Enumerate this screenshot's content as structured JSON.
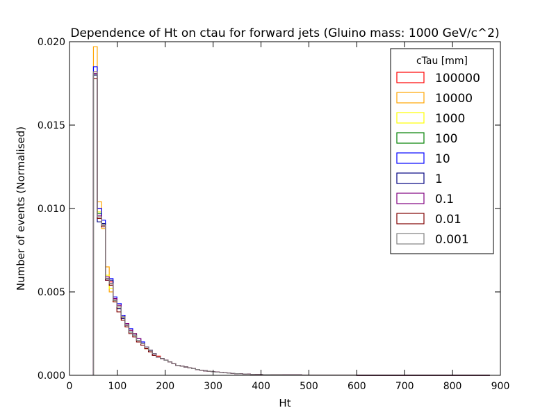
{
  "chart_data": {
    "type": "step-histogram",
    "title": "Dependence of Ht on ctau for forward jets (Gluino mass: 1000 GeV/c^2)",
    "xlabel": "Ht",
    "ylabel": "Number of events (Normalised)",
    "xlim": [
      0,
      900
    ],
    "ylim": [
      0,
      0.02
    ],
    "x_ticks": [
      "0",
      "100",
      "200",
      "300",
      "400",
      "500",
      "600",
      "700",
      "800",
      "900"
    ],
    "y_ticks": [
      "0.000",
      "0.005",
      "0.010",
      "0.015",
      "0.020"
    ],
    "grid": false,
    "legend": {
      "title": "cTau [mm]",
      "placement": "top-right"
    },
    "bin_edges": [
      50,
      58,
      67,
      75,
      83,
      91,
      99,
      108,
      116,
      124,
      132,
      140,
      149,
      157,
      165,
      173,
      181,
      190,
      198,
      206,
      214,
      222,
      231,
      239,
      247,
      255,
      263,
      272,
      280,
      288,
      296,
      304,
      313,
      321,
      329,
      337,
      345,
      354,
      362,
      370,
      378,
      386,
      395,
      403,
      411,
      419,
      427,
      436,
      444,
      452,
      460,
      468,
      477,
      485,
      493,
      501,
      509,
      518,
      526,
      534,
      542,
      550,
      559,
      567,
      575,
      583,
      591,
      600,
      608,
      616,
      624,
      632,
      641,
      649,
      657,
      665,
      673,
      682,
      690,
      698,
      706,
      714,
      723,
      731,
      739,
      747,
      755,
      764,
      772,
      780,
      788,
      796,
      805,
      813,
      821,
      829,
      837,
      846,
      854,
      862,
      870,
      878
    ],
    "series": [
      {
        "name": "100000",
        "color": "#ff0000",
        "values": [
          0.0182,
          0.01,
          0.009,
          0.0058,
          0.0056,
          0.0046,
          0.004,
          0.0036,
          0.003,
          0.0027,
          0.0024,
          0.0022,
          0.0019,
          0.0017,
          0.0015,
          0.0013,
          0.00115,
          0.001,
          0.0009,
          0.0008,
          0.0007,
          0.0006,
          0.00055,
          0.0005,
          0.00045,
          0.0004,
          0.00035,
          0.0003,
          0.00027,
          0.00024,
          0.00021,
          0.00019,
          0.00017,
          0.00015,
          0.00013,
          0.00012,
          0.0001,
          9e-05,
          8e-05,
          7e-05,
          6e-05,
          5e-05,
          5e-05,
          4e-05,
          4e-05,
          3e-05,
          3e-05,
          3e-05,
          2e-05,
          2e-05,
          2e-05,
          2e-05,
          2e-05,
          1e-05,
          1e-05,
          1e-05,
          1e-05,
          1e-05,
          1e-05,
          1e-05,
          1e-05,
          1e-05,
          1e-05,
          1e-05,
          1e-05,
          1e-05,
          1e-05,
          0,
          0,
          0,
          0,
          0,
          0,
          0,
          0,
          0,
          0,
          0,
          0,
          0,
          0,
          0,
          0,
          0,
          0,
          0,
          0,
          0,
          0,
          0,
          0,
          0,
          0,
          0,
          0,
          0,
          0,
          0,
          0,
          0,
          0
        ]
      },
      {
        "name": "10000",
        "color": "#ffa500",
        "values": [
          0.0197,
          0.0104,
          0.0088,
          0.0065,
          0.005,
          0.0045,
          0.0042,
          0.0034,
          0.003,
          0.0026,
          0.0025,
          0.0021,
          0.0019,
          0.0017,
          0.0014,
          0.0012,
          0.0011,
          0.001,
          0.0009,
          0.0008,
          0.0007,
          0.0006,
          0.00055,
          0.0005,
          0.00045,
          0.0004,
          0.00035,
          0.0003,
          0.00027,
          0.00024,
          0.00021,
          0.00019,
          0.00017,
          0.00015,
          0.00013,
          0.00012,
          0.0001,
          9e-05,
          8e-05,
          7e-05,
          6e-05,
          5e-05,
          5e-05,
          4e-05,
          4e-05,
          3e-05,
          3e-05,
          3e-05,
          2e-05,
          2e-05,
          2e-05,
          2e-05,
          2e-05,
          1e-05,
          1e-05,
          1e-05,
          1e-05,
          1e-05,
          1e-05,
          1e-05,
          1e-05,
          1e-05,
          1e-05,
          1e-05,
          1e-05,
          1e-05,
          1e-05,
          0,
          0,
          0,
          0,
          0,
          0,
          0,
          0,
          0,
          0,
          0,
          0,
          0,
          0,
          0,
          0,
          0,
          0,
          0,
          0,
          0,
          0,
          0,
          0,
          0,
          0,
          0,
          0,
          0,
          0,
          0,
          0,
          0,
          0
        ]
      },
      {
        "name": "1000",
        "color": "#ffff00",
        "values": [
          0.018,
          0.0098,
          0.0091,
          0.006,
          0.0052,
          0.0044,
          0.0041,
          0.0035,
          0.0031,
          0.0027,
          0.0024,
          0.0022,
          0.0019,
          0.0016,
          0.0014,
          0.0013,
          0.0011,
          0.001,
          0.0009,
          0.0008,
          0.0007,
          0.0006,
          0.00055,
          0.0005,
          0.00045,
          0.0004,
          0.00035,
          0.0003,
          0.00027,
          0.00024,
          0.00021,
          0.00019,
          0.00017,
          0.00015,
          0.00013,
          0.00012,
          0.0001,
          9e-05,
          8e-05,
          7e-05,
          6e-05,
          5e-05,
          5e-05,
          4e-05,
          4e-05,
          3e-05,
          3e-05,
          3e-05,
          2e-05,
          2e-05,
          2e-05,
          2e-05,
          2e-05,
          1e-05,
          1e-05,
          1e-05,
          1e-05,
          1e-05,
          1e-05,
          1e-05,
          1e-05,
          1e-05,
          1e-05,
          1e-05,
          1e-05,
          1e-05,
          1e-05,
          0,
          0,
          0,
          0,
          0,
          0,
          0,
          0,
          0,
          0,
          0,
          0,
          0,
          0,
          0,
          0,
          0,
          0,
          0,
          0,
          0,
          0,
          0,
          0,
          0,
          0,
          0,
          0,
          0,
          0,
          0,
          0,
          0,
          0
        ]
      },
      {
        "name": "100",
        "color": "#008000",
        "values": [
          0.0181,
          0.0097,
          0.009,
          0.0058,
          0.0055,
          0.0045,
          0.004,
          0.0035,
          0.0031,
          0.0026,
          0.0025,
          0.0021,
          0.0019,
          0.0017,
          0.0015,
          0.0013,
          0.0011,
          0.001,
          0.0009,
          0.0008,
          0.0007,
          0.0006,
          0.00055,
          0.0005,
          0.00045,
          0.0004,
          0.00035,
          0.0003,
          0.00027,
          0.00024,
          0.00021,
          0.00019,
          0.00017,
          0.00015,
          0.00013,
          0.00012,
          0.0001,
          9e-05,
          8e-05,
          7e-05,
          6e-05,
          5e-05,
          5e-05,
          4e-05,
          4e-05,
          3e-05,
          3e-05,
          3e-05,
          2e-05,
          2e-05,
          2e-05,
          2e-05,
          2e-05,
          1e-05,
          1e-05,
          1e-05,
          1e-05,
          1e-05,
          1e-05,
          1e-05,
          1e-05,
          1e-05,
          1e-05,
          1e-05,
          1e-05,
          1e-05,
          1e-05,
          0,
          0,
          0,
          0,
          0,
          0,
          0,
          0,
          0,
          0,
          0,
          0,
          0,
          0,
          0,
          0,
          0,
          0,
          0,
          0,
          0,
          0,
          0,
          0,
          0,
          0,
          0,
          0,
          0,
          0,
          0,
          0,
          0,
          0
        ]
      },
      {
        "name": "10",
        "color": "#0000ff",
        "values": [
          0.0185,
          0.01,
          0.0093,
          0.0057,
          0.0058,
          0.0047,
          0.0043,
          0.0036,
          0.003,
          0.0028,
          0.0024,
          0.0022,
          0.002,
          0.0017,
          0.0015,
          0.0013,
          0.0011,
          0.001,
          0.0009,
          0.0008,
          0.0007,
          0.0006,
          0.00055,
          0.0005,
          0.00045,
          0.0004,
          0.00035,
          0.0003,
          0.00027,
          0.00024,
          0.00021,
          0.00019,
          0.00017,
          0.00015,
          0.00013,
          0.00012,
          0.0001,
          9e-05,
          8e-05,
          7e-05,
          6e-05,
          5e-05,
          5e-05,
          4e-05,
          4e-05,
          3e-05,
          3e-05,
          3e-05,
          2e-05,
          2e-05,
          2e-05,
          2e-05,
          2e-05,
          1e-05,
          1e-05,
          1e-05,
          1e-05,
          1e-05,
          1e-05,
          1e-05,
          1e-05,
          1e-05,
          1e-05,
          1e-05,
          1e-05,
          1e-05,
          1e-05,
          0,
          0,
          0,
          0,
          0,
          0,
          0,
          0,
          0,
          0,
          0,
          0,
          0,
          0,
          0,
          0,
          0,
          0,
          0,
          0,
          0,
          0,
          0,
          0,
          0,
          0,
          0,
          0,
          0,
          0,
          0,
          0,
          0,
          0
        ]
      },
      {
        "name": "1",
        "color": "#000080",
        "values": [
          0.018,
          0.0092,
          0.0091,
          0.0058,
          0.0057,
          0.0045,
          0.004,
          0.0034,
          0.003,
          0.0026,
          0.0024,
          0.0021,
          0.0019,
          0.0017,
          0.0014,
          0.0012,
          0.0011,
          0.001,
          0.0009,
          0.0008,
          0.0007,
          0.0006,
          0.00055,
          0.0005,
          0.00045,
          0.0004,
          0.00035,
          0.0003,
          0.00027,
          0.00024,
          0.00021,
          0.00019,
          0.00017,
          0.00015,
          0.00013,
          0.00012,
          0.0001,
          9e-05,
          8e-05,
          7e-05,
          6e-05,
          5e-05,
          5e-05,
          4e-05,
          4e-05,
          3e-05,
          3e-05,
          3e-05,
          2e-05,
          2e-05,
          2e-05,
          2e-05,
          2e-05,
          1e-05,
          1e-05,
          1e-05,
          1e-05,
          1e-05,
          1e-05,
          1e-05,
          1e-05,
          1e-05,
          1e-05,
          1e-05,
          1e-05,
          1e-05,
          1e-05,
          0,
          0,
          0,
          0,
          0,
          0,
          0,
          0,
          0,
          0,
          0,
          0,
          0,
          0,
          0,
          0,
          0,
          0,
          0,
          0,
          0,
          0,
          0,
          0,
          0,
          0,
          0,
          0,
          0,
          0,
          0,
          0,
          0,
          0
        ]
      },
      {
        "name": "0.1",
        "color": "#800080",
        "values": [
          0.0181,
          0.0096,
          0.009,
          0.0059,
          0.0055,
          0.0046,
          0.0042,
          0.0035,
          0.0031,
          0.0027,
          0.0025,
          0.0022,
          0.0019,
          0.0017,
          0.0015,
          0.0013,
          0.0011,
          0.001,
          0.0009,
          0.0008,
          0.0007,
          0.0006,
          0.00055,
          0.0005,
          0.00045,
          0.0004,
          0.00035,
          0.0003,
          0.00027,
          0.00024,
          0.00021,
          0.00019,
          0.00017,
          0.00015,
          0.00013,
          0.00012,
          0.0001,
          9e-05,
          8e-05,
          7e-05,
          6e-05,
          5e-05,
          5e-05,
          4e-05,
          4e-05,
          3e-05,
          3e-05,
          3e-05,
          2e-05,
          2e-05,
          2e-05,
          2e-05,
          2e-05,
          1e-05,
          1e-05,
          1e-05,
          1e-05,
          1e-05,
          1e-05,
          1e-05,
          1e-05,
          1e-05,
          1e-05,
          1e-05,
          1e-05,
          1e-05,
          1e-05,
          0,
          0,
          0,
          0,
          0,
          0,
          0,
          0,
          0,
          0,
          0,
          0,
          0,
          0,
          0,
          0,
          0,
          0,
          0,
          0,
          0,
          0,
          0,
          0,
          0,
          0,
          0,
          0,
          0,
          0,
          0,
          0,
          0,
          0
        ]
      },
      {
        "name": "0.01",
        "color": "#800000",
        "values": [
          0.0178,
          0.0094,
          0.0089,
          0.0057,
          0.0054,
          0.0044,
          0.0038,
          0.0033,
          0.0029,
          0.0025,
          0.0023,
          0.002,
          0.0018,
          0.0016,
          0.0014,
          0.0012,
          0.0011,
          0.001,
          0.0009,
          0.0008,
          0.0007,
          0.0006,
          0.00055,
          0.0005,
          0.00045,
          0.0004,
          0.00035,
          0.0003,
          0.00027,
          0.00024,
          0.00021,
          0.00019,
          0.00017,
          0.00015,
          0.00013,
          0.00012,
          0.0001,
          9e-05,
          8e-05,
          7e-05,
          6e-05,
          5e-05,
          5e-05,
          4e-05,
          4e-05,
          3e-05,
          3e-05,
          3e-05,
          2e-05,
          2e-05,
          2e-05,
          2e-05,
          2e-05,
          1e-05,
          1e-05,
          1e-05,
          1e-05,
          1e-05,
          1e-05,
          1e-05,
          1e-05,
          1e-05,
          1e-05,
          1e-05,
          1e-05,
          1e-05,
          1e-05,
          0,
          0,
          0,
          0,
          0,
          0,
          0,
          0,
          0,
          0,
          0,
          0,
          0,
          0,
          0,
          0,
          0,
          0,
          0,
          0,
          0,
          0,
          0,
          0,
          0,
          0,
          0,
          0,
          0,
          0,
          0,
          0,
          0,
          0
        ]
      },
      {
        "name": "0.001",
        "color": "#808080",
        "values": [
          0.0182,
          0.0095,
          0.009,
          0.0058,
          0.0055,
          0.0045,
          0.0041,
          0.0035,
          0.003,
          0.0026,
          0.0024,
          0.0021,
          0.0019,
          0.0017,
          0.0015,
          0.0013,
          0.0011,
          0.001,
          0.0009,
          0.0008,
          0.0007,
          0.0006,
          0.00055,
          0.0005,
          0.00045,
          0.0004,
          0.00035,
          0.0003,
          0.00027,
          0.00024,
          0.00021,
          0.00019,
          0.00017,
          0.00015,
          0.00013,
          0.00012,
          0.0001,
          9e-05,
          8e-05,
          7e-05,
          6e-05,
          5e-05,
          5e-05,
          4e-05,
          4e-05,
          3e-05,
          3e-05,
          3e-05,
          2e-05,
          2e-05,
          2e-05,
          2e-05,
          2e-05,
          1e-05,
          1e-05,
          1e-05,
          1e-05,
          1e-05,
          1e-05,
          1e-05,
          1e-05,
          1e-05,
          1e-05,
          1e-05,
          1e-05,
          1e-05,
          1e-05,
          0,
          0,
          0,
          0,
          0,
          0,
          0,
          0,
          0,
          0,
          0,
          0,
          0,
          0,
          0,
          0,
          0,
          0,
          0,
          0,
          0,
          0,
          0,
          0,
          0,
          0,
          0,
          0,
          0,
          0,
          0,
          0,
          0,
          0
        ]
      }
    ]
  }
}
